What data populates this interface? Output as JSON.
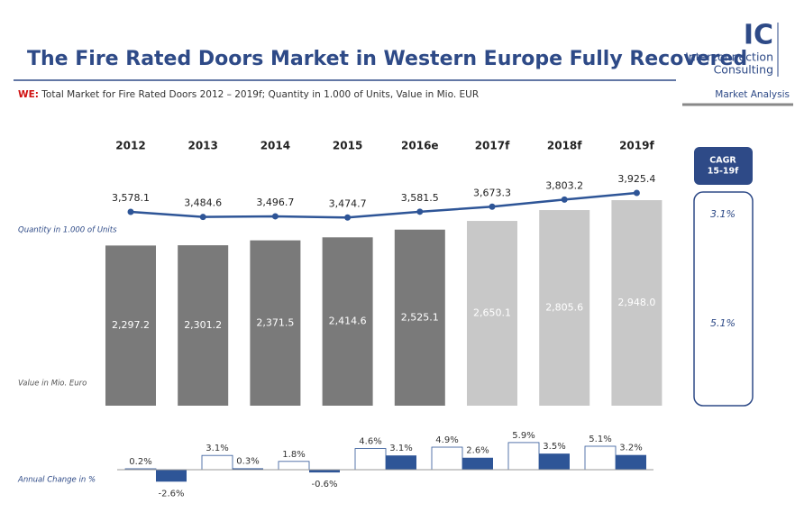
{
  "header": {
    "title": "The Fire Rated Doors Market in Western Europe Fully Recovered",
    "subtitle_prefix": "WE:",
    "subtitle": " Total Market for Fire Rated Doors 2012 – 2019f; Quantity in 1.000 of Units, Value in Mio. EUR",
    "section": "Market Analysis"
  },
  "logo": {
    "mark": "IC",
    "line1": "Interconnection",
    "line2": "Consulting"
  },
  "chart_data": [
    {
      "type": "bar",
      "axis_label": "Value in Mio. Euro",
      "categories": [
        "2012",
        "2013",
        "2014",
        "2015",
        "2016e",
        "2017f",
        "2018f",
        "2019f"
      ],
      "values": [
        2297.2,
        2301.2,
        2371.5,
        2414.6,
        2525.1,
        2650.1,
        2805.6,
        2948.0
      ],
      "value_labels": [
        "2,297.2",
        "2,301.2",
        "2,371.5",
        "2,414.6",
        "2,525.1",
        "2,650.1",
        "2,805.6",
        "2,948.0"
      ],
      "colors": [
        "#7a7a7a",
        "#7a7a7a",
        "#7a7a7a",
        "#7a7a7a",
        "#7a7a7a",
        "#c8c8c8",
        "#c8c8c8",
        "#c8c8c8"
      ],
      "ylim": [
        0,
        3000
      ]
    },
    {
      "type": "line",
      "axis_label": "Quantity in 1.000 of Units",
      "values": [
        3578.1,
        3484.6,
        3496.7,
        3474.7,
        3581.5,
        3673.3,
        3803.2,
        3925.4
      ],
      "value_labels": [
        "3,578.1",
        "3,484.6",
        "3,496.7",
        "3,474.7",
        "3,581.5",
        "3,673.3",
        "3,803.2",
        "3,925.4"
      ],
      "color": "#2e5597",
      "ylim": [
        3000,
        4000
      ]
    },
    {
      "type": "bar",
      "axis_label": "Annual Change in %",
      "series": [
        {
          "color": "#ffffff",
          "values": [
            0.2,
            3.1,
            1.8,
            4.6,
            4.9,
            5.9,
            5.1
          ],
          "value_labels": [
            "0.2%",
            "3.1%",
            "1.8%",
            "4.6%",
            "4.9%",
            "5.9%",
            "5.1%"
          ]
        },
        {
          "color": "#2e5597",
          "values": [
            -2.6,
            0.3,
            -0.6,
            3.1,
            2.6,
            3.5,
            3.2
          ],
          "value_labels": [
            "-2.6%",
            "0.3%",
            "-0.6%",
            "3.1%",
            "2.6%",
            "3.5%",
            "3.2%"
          ]
        }
      ],
      "ylim": [
        -3,
        6
      ]
    }
  ],
  "cagr": {
    "title": "CAGR",
    "subtitle": "15-19f",
    "values": [
      3.1,
      5.1
    ],
    "value_labels": [
      "3.1%",
      "5.1%"
    ]
  }
}
